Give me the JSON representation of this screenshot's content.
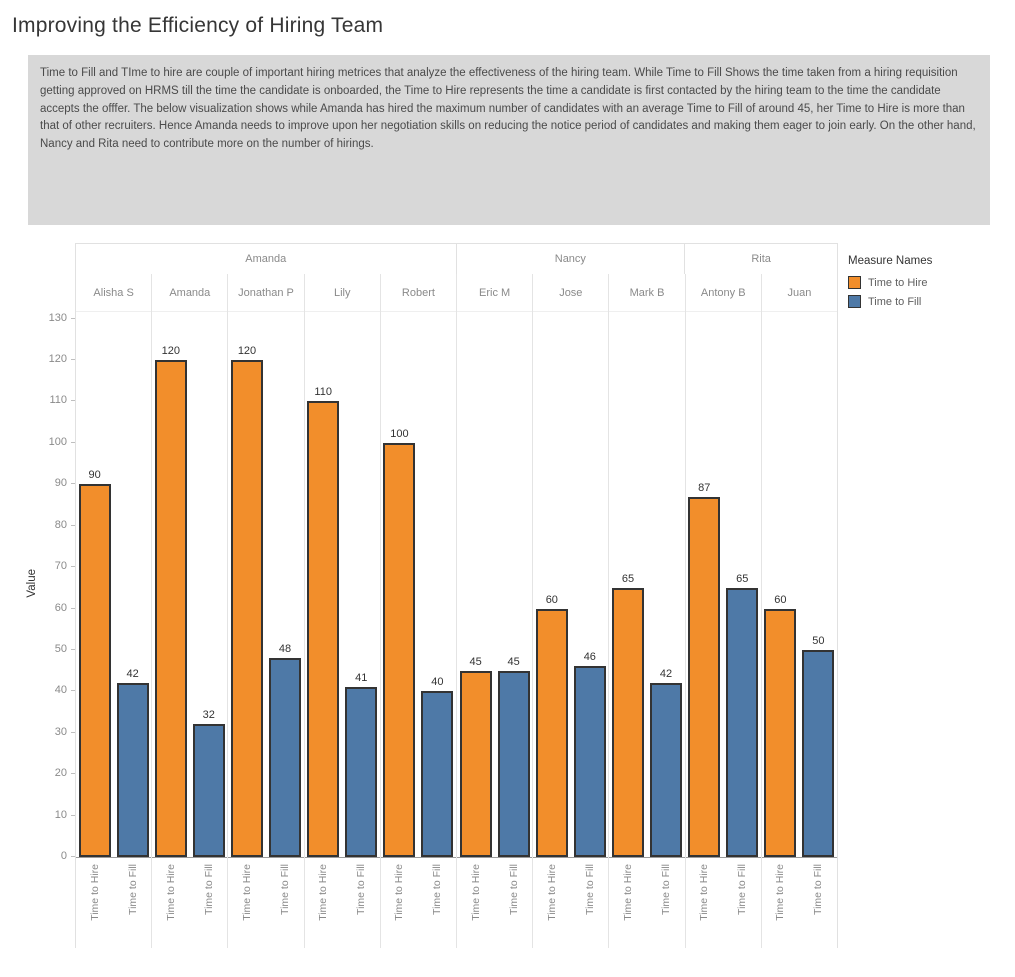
{
  "title": "Improving the Efficiency of Hiring Team",
  "description": "Time to Fill and TIme to hire are couple of important hiring metrices that analyze the effectiveness of the hiring team. While Time to Fill Shows the time taken from a hiring requisition getting approved on HRMS till the time the candidate is onboarded, the Time to Hire represents the time a candidate is first contacted by the hiring team to the time the candidate accepts the offfer. The below visualization shows while Amanda has hired the maximum number of candidates with an average Time to Fill of around 45, her Time to Hire is more than that of other recruiters. Hence Amanda needs to improve upon her negotiation skills on reducing the notice period of candidates and making them eager to join early. On the other hand, Nancy and Rita need to contribute more on the number of hirings.",
  "legend": {
    "title": "Measure Names",
    "items": [
      {
        "label": "Time to Hire",
        "color": "#f28e2b"
      },
      {
        "label": "Time to Fill",
        "color": "#4e79a7"
      }
    ]
  },
  "chart_data": {
    "type": "bar",
    "title": "Improving the Efficiency of Hiring Team",
    "ylabel": "Value",
    "ylim": [
      0,
      130
    ],
    "ytick_interval": 10,
    "grid": false,
    "legend_position": "top-right",
    "series_labels": [
      "Time to Hire",
      "Time to Fill"
    ],
    "series_colors": [
      "#f28e2b",
      "#4e79a7"
    ],
    "groups": [
      {
        "manager": "Amanda",
        "recruiters": [
          {
            "name": "Alisha S",
            "time_to_hire": 90,
            "time_to_fill": 42
          },
          {
            "name": "Amanda",
            "time_to_hire": 120,
            "time_to_fill": 32
          },
          {
            "name": "Jonathan P",
            "time_to_hire": 120,
            "time_to_fill": 48
          },
          {
            "name": "Lily",
            "time_to_hire": 110,
            "time_to_fill": 41
          },
          {
            "name": "Robert",
            "time_to_hire": 100,
            "time_to_fill": 40
          }
        ]
      },
      {
        "manager": "Nancy",
        "recruiters": [
          {
            "name": "Eric M",
            "time_to_hire": 45,
            "time_to_fill": 45
          },
          {
            "name": "Jose",
            "time_to_hire": 60,
            "time_to_fill": 46
          },
          {
            "name": "Mark B",
            "time_to_hire": 65,
            "time_to_fill": 42
          }
        ]
      },
      {
        "manager": "Rita",
        "recruiters": [
          {
            "name": "Antony B",
            "time_to_hire": 87,
            "time_to_fill": 65
          },
          {
            "name": "Juan",
            "time_to_hire": 60,
            "time_to_fill": 50
          }
        ]
      }
    ]
  }
}
